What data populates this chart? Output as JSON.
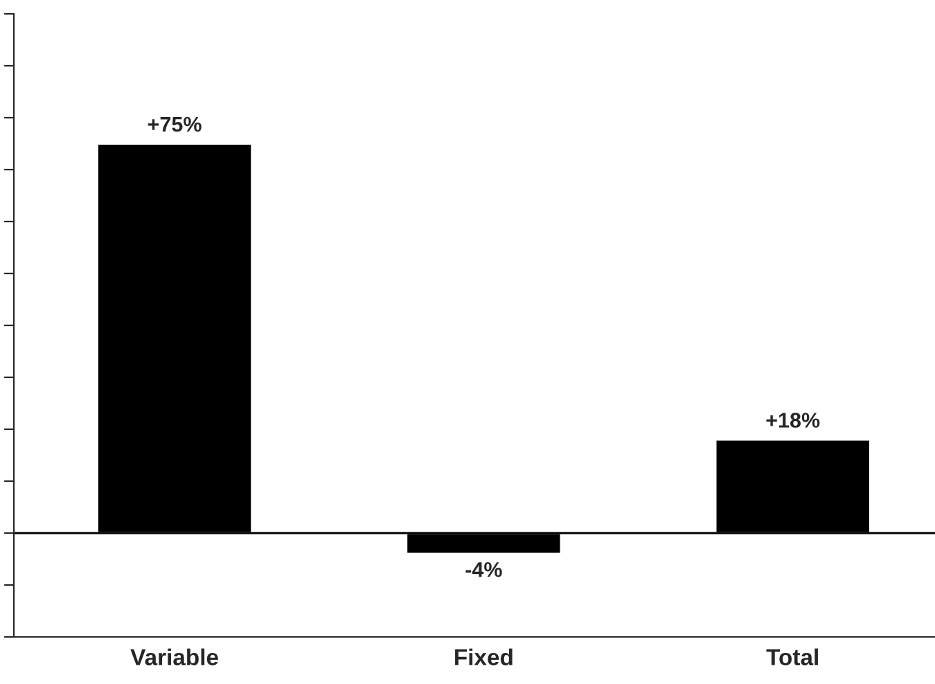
{
  "chart_data": {
    "type": "bar",
    "categories": [
      "Variable",
      "Fixed",
      "Total"
    ],
    "values": [
      75,
      -4,
      18
    ],
    "value_labels": [
      "+75%",
      "-4%",
      "+18%"
    ],
    "color": "#000000",
    "ylim": [
      -20,
      100
    ],
    "yticks": [
      {
        "value": -20,
        "label": null
      },
      {
        "value": -10,
        "label": null
      },
      {
        "value": 0,
        "label": null
      },
      {
        "value": 10,
        "label": null
      },
      {
        "value": 20,
        "label": null
      },
      {
        "value": 30,
        "label": null
      },
      {
        "value": 40,
        "label": null
      },
      {
        "value": 50,
        "label": null
      },
      {
        "value": 60,
        "label": null
      },
      {
        "value": 70,
        "label": null
      },
      {
        "value": 80,
        "label": null
      },
      {
        "value": 90,
        "label": null
      },
      {
        "value": 100,
        "label": null
      }
    ],
    "ref_lines": [
      {
        "axis": "y",
        "value": 0,
        "color": "#000000"
      }
    ],
    "tick_labels": "x",
    "grid": false
  }
}
